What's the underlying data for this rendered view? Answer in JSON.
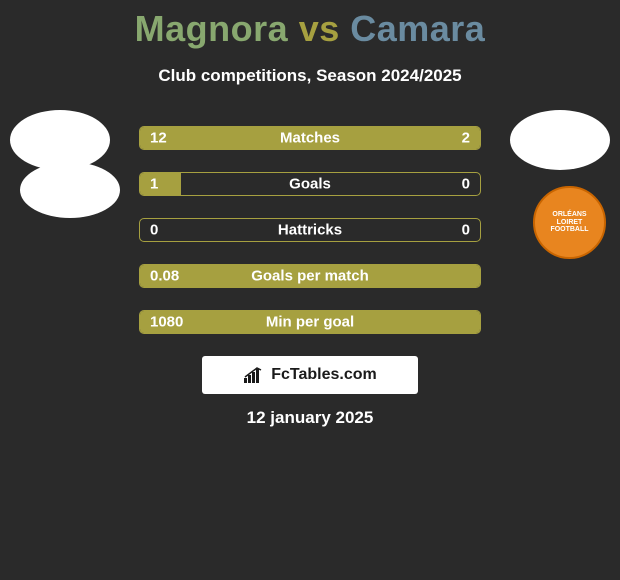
{
  "title": {
    "player1": "Magnora",
    "vs": "vs",
    "player2": "Camara"
  },
  "subtitle": "Club competitions, Season 2024/2025",
  "colors": {
    "accent": "#a6a040",
    "background": "#2a2a2a",
    "text": "#ffffff",
    "title_p1": "#88a86f",
    "title_vs": "#a6a040",
    "title_p2": "#6a8ba0",
    "club_fill": "#e8851f",
    "club_border": "#c96500"
  },
  "club_logo": {
    "line1": "ORLÉANS",
    "line2": "LOIRET",
    "line3": "FOOTBALL"
  },
  "rows": [
    {
      "label": "Matches",
      "left": "12",
      "right": "2",
      "left_pct": 78,
      "right_pct": 22
    },
    {
      "label": "Goals",
      "left": "1",
      "right": "0",
      "left_pct": 12,
      "right_pct": 0
    },
    {
      "label": "Hattricks",
      "left": "0",
      "right": "0",
      "left_pct": 0,
      "right_pct": 0
    },
    {
      "label": "Goals per match",
      "left": "0.08",
      "right": "",
      "left_pct": 100,
      "right_pct": 0
    },
    {
      "label": "Min per goal",
      "left": "1080",
      "right": "",
      "left_pct": 100,
      "right_pct": 0
    }
  ],
  "brand": "FcTables.com",
  "date": "12 january 2025"
}
